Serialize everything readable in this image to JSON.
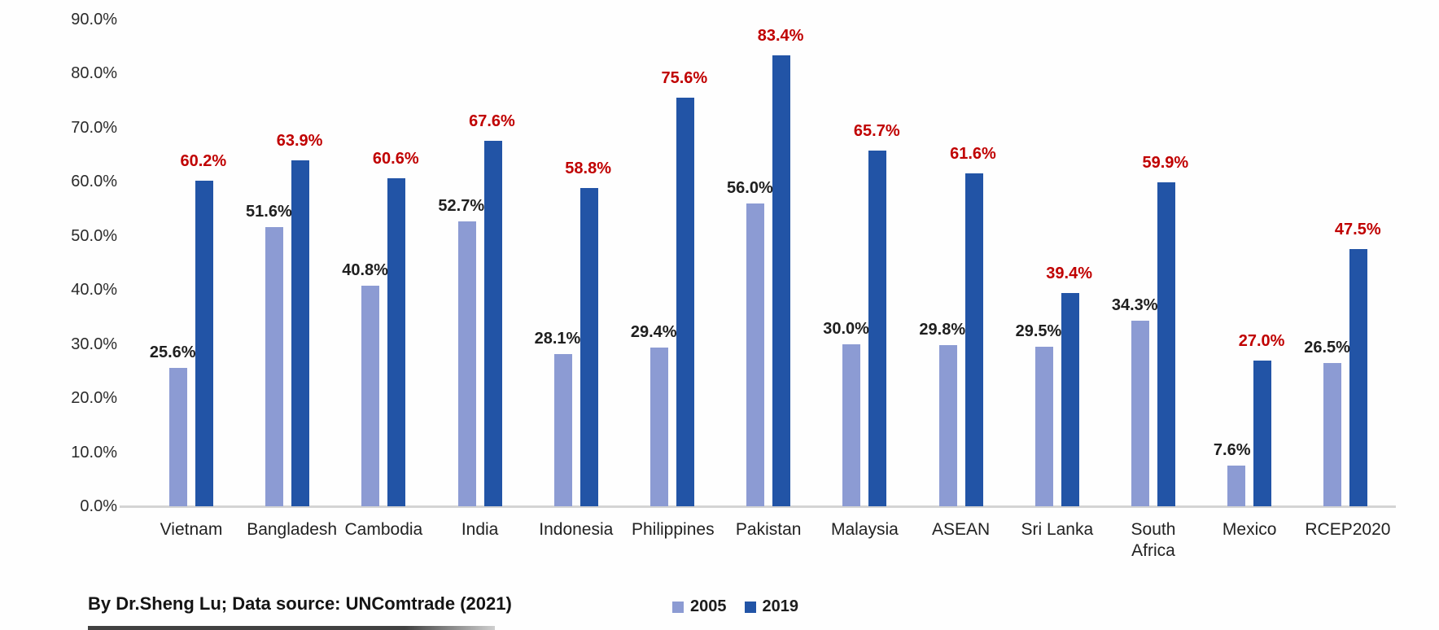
{
  "chart_data": {
    "type": "bar",
    "title": "",
    "categories": [
      "Vietnam",
      "Bangladesh",
      "Cambodia",
      "India",
      "Indonesia",
      "Philippines",
      "Pakistan",
      "Malaysia",
      "ASEAN",
      "Sri Lanka",
      "South Africa",
      "Mexico",
      "RCEP2020"
    ],
    "series": [
      {
        "name": "2005",
        "color": "#8C9BD3",
        "label_color": "#1f1f1f",
        "values": [
          25.6,
          51.6,
          40.8,
          52.7,
          28.1,
          29.4,
          56.0,
          30.0,
          29.8,
          29.5,
          34.3,
          7.6,
          26.5
        ]
      },
      {
        "name": "2019",
        "color": "#2254A6",
        "label_color": "#C00000",
        "values": [
          60.2,
          63.9,
          60.6,
          67.6,
          58.8,
          75.6,
          83.4,
          65.7,
          61.6,
          39.4,
          59.9,
          27.0,
          47.5
        ]
      }
    ],
    "value_suffix": "%",
    "ylim": [
      0,
      90
    ],
    "y_ticks": [
      90,
      80,
      70,
      60,
      50,
      40,
      30,
      20,
      10,
      0
    ],
    "y_tick_labels": [
      "90.0%",
      "80.0%",
      "70.0%",
      "60.0%",
      "50.0%",
      "40.0%",
      "30.0%",
      "20.0%",
      "10.0%",
      "0.0%"
    ],
    "grid": false,
    "legend_position": "bottom",
    "data_labels": "outside-end, 2005 in black, 2019 in red"
  },
  "footer": {
    "credit": "By Dr.Sheng Lu; Data source: UNComtrade (2021)"
  },
  "colors": {
    "series_2005": "#8C9BD3",
    "series_2019": "#2254A6",
    "label_2019_red": "#C00000",
    "axis_line": "#d4d4d4",
    "text": "#222222"
  }
}
